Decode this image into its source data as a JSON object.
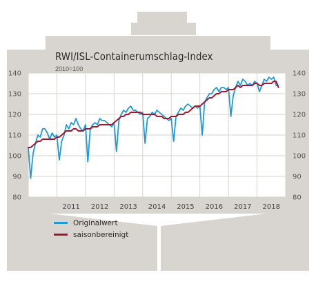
{
  "colors": {
    "ship": "#d8d4cf",
    "plot_bg": "#ffffff",
    "grid": "#d7d3ce",
    "original": "#1f9ad6",
    "adjusted": "#a3172e"
  },
  "chart_data": {
    "type": "line",
    "title": "RWI/ISL-Containerumschlag-Index",
    "subtitle": "2010=100",
    "ylim": [
      80,
      140
    ],
    "yticks": [
      80,
      90,
      100,
      110,
      120,
      130,
      140
    ],
    "xlim": [
      2010.0,
      2019.0
    ],
    "year_labels": [
      "2011",
      "2012",
      "2013",
      "2014",
      "2015",
      "2016",
      "2017",
      "2018"
    ],
    "grid": true,
    "legend_position": "bottom-left",
    "series": [
      {
        "name": "Originalwert",
        "color": "#1f9ad6",
        "x": [
          2010.0,
          2010.083,
          2010.167,
          2010.25,
          2010.333,
          2010.417,
          2010.5,
          2010.583,
          2010.667,
          2010.75,
          2010.833,
          2010.917,
          2011.0,
          2011.083,
          2011.167,
          2011.25,
          2011.333,
          2011.417,
          2011.5,
          2011.583,
          2011.667,
          2011.75,
          2011.833,
          2011.917,
          2012.0,
          2012.083,
          2012.167,
          2012.25,
          2012.333,
          2012.417,
          2012.5,
          2012.583,
          2012.667,
          2012.75,
          2012.833,
          2012.917,
          2013.0,
          2013.083,
          2013.167,
          2013.25,
          2013.333,
          2013.417,
          2013.5,
          2013.583,
          2013.667,
          2013.75,
          2013.833,
          2013.917,
          2014.0,
          2014.083,
          2014.167,
          2014.25,
          2014.333,
          2014.417,
          2014.5,
          2014.583,
          2014.667,
          2014.75,
          2014.833,
          2014.917,
          2015.0,
          2015.083,
          2015.167,
          2015.25,
          2015.333,
          2015.417,
          2015.5,
          2015.583,
          2015.667,
          2015.75,
          2015.833,
          2015.917,
          2016.0,
          2016.083,
          2016.167,
          2016.25,
          2016.333,
          2016.417,
          2016.5,
          2016.583,
          2016.667,
          2016.75,
          2016.833,
          2016.917,
          2017.0,
          2017.083,
          2017.167,
          2017.25,
          2017.333,
          2017.417,
          2017.5,
          2017.583,
          2017.667,
          2017.75,
          2017.833,
          2017.917,
          2018.0,
          2018.083,
          2018.167,
          2018.25,
          2018.333,
          2018.417,
          2018.5,
          2018.583,
          2018.667,
          2018.75
        ],
        "values": [
          104,
          89,
          101,
          106,
          110,
          109,
          113,
          113,
          111,
          108,
          111,
          109,
          110,
          98,
          107,
          110,
          115,
          113,
          116,
          115,
          118,
          115,
          113,
          112,
          115,
          97,
          113,
          115,
          116,
          115,
          118,
          117,
          117,
          116,
          115,
          114,
          116,
          102,
          117,
          120,
          122,
          121,
          123,
          124,
          122,
          122,
          121,
          120,
          121,
          106,
          118,
          119,
          121,
          120,
          122,
          121,
          120,
          119,
          118,
          117,
          118,
          107,
          119,
          121,
          123,
          122,
          124,
          125,
          124,
          123,
          124,
          123,
          124,
          110,
          126,
          128,
          130,
          130,
          132,
          133,
          131,
          133,
          133,
          132,
          133,
          119,
          129,
          133,
          136,
          134,
          137,
          136,
          134,
          135,
          134,
          136,
          135,
          131,
          134,
          137,
          136,
          138,
          137,
          138,
          134,
          134
        ]
      },
      {
        "name": "saisonbereinigt",
        "color": "#a3172e",
        "x": [
          2010.0,
          2010.083,
          2010.167,
          2010.25,
          2010.333,
          2010.417,
          2010.5,
          2010.583,
          2010.667,
          2010.75,
          2010.833,
          2010.917,
          2011.0,
          2011.083,
          2011.167,
          2011.25,
          2011.333,
          2011.417,
          2011.5,
          2011.583,
          2011.667,
          2011.75,
          2011.833,
          2011.917,
          2012.0,
          2012.083,
          2012.167,
          2012.25,
          2012.333,
          2012.417,
          2012.5,
          2012.583,
          2012.667,
          2012.75,
          2012.833,
          2012.917,
          2013.0,
          2013.083,
          2013.167,
          2013.25,
          2013.333,
          2013.417,
          2013.5,
          2013.583,
          2013.667,
          2013.75,
          2013.833,
          2013.917,
          2014.0,
          2014.083,
          2014.167,
          2014.25,
          2014.333,
          2014.417,
          2014.5,
          2014.583,
          2014.667,
          2014.75,
          2014.833,
          2014.917,
          2015.0,
          2015.083,
          2015.167,
          2015.25,
          2015.333,
          2015.417,
          2015.5,
          2015.583,
          2015.667,
          2015.75,
          2015.833,
          2015.917,
          2016.0,
          2016.083,
          2016.167,
          2016.25,
          2016.333,
          2016.417,
          2016.5,
          2016.583,
          2016.667,
          2016.75,
          2016.833,
          2016.917,
          2017.0,
          2017.083,
          2017.167,
          2017.25,
          2017.333,
          2017.417,
          2017.5,
          2017.583,
          2017.667,
          2017.75,
          2017.833,
          2017.917,
          2018.0,
          2018.083,
          2018.167,
          2018.25,
          2018.333,
          2018.417,
          2018.5,
          2018.583,
          2018.667,
          2018.75
        ],
        "values": [
          104,
          104,
          105,
          106,
          107,
          107,
          108,
          108,
          108,
          108,
          108,
          108,
          109,
          109,
          110,
          111,
          112,
          112,
          112,
          113,
          113,
          112,
          112,
          112,
          113,
          113,
          113,
          114,
          114,
          114,
          115,
          115,
          115,
          115,
          115,
          115,
          116,
          117,
          118,
          119,
          119,
          120,
          120,
          121,
          121,
          121,
          121,
          121,
          120,
          120,
          120,
          120,
          120,
          120,
          119,
          119,
          119,
          118,
          118,
          118,
          119,
          119,
          119,
          120,
          120,
          120,
          121,
          121,
          122,
          123,
          124,
          124,
          124,
          125,
          126,
          127,
          128,
          128,
          129,
          130,
          130,
          131,
          131,
          131,
          132,
          132,
          132,
          133,
          134,
          133,
          134,
          134,
          134,
          134,
          134,
          135,
          135,
          134,
          134,
          135,
          135,
          135,
          135,
          136,
          136,
          133
        ]
      }
    ]
  }
}
